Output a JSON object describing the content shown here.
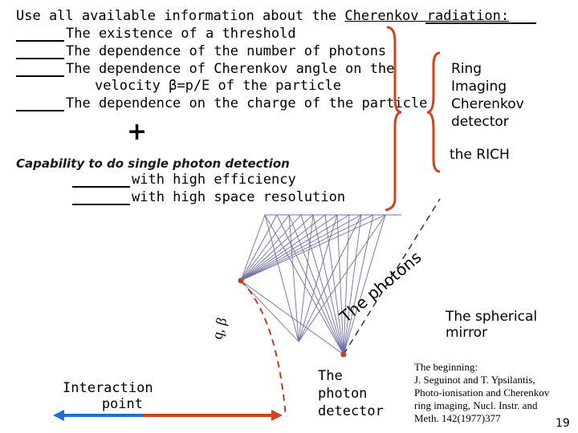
{
  "heading": {
    "prefix": "Use all available information about the ",
    "link": "Cherenkov radiation:"
  },
  "items": [
    "The existence of a threshold",
    "The dependence of the number of photons",
    "The dependence of  Cherenkov angle on the",
    "velocity β=p/E of the particle",
    "The dependence on the charge of the particle"
  ],
  "plus": "+",
  "capability": {
    "title": "Capability to do single photon detection",
    "lines": [
      "with high efficiency",
      "with high space resolution"
    ]
  },
  "rich": {
    "lines": [
      "Ring",
      "Imaging",
      "Cherenkov",
      "detector"
    ],
    "acronym": "the RICH"
  },
  "diagram": {
    "photons_label": "The photons",
    "mirror_label": "The spherical mirror",
    "particle_label": "q, β",
    "interaction_label": "Interaction point",
    "detector_label": "The photon detector"
  },
  "reference": {
    "lines": [
      "The beginning:",
      "J. Seguinot and T. Ypsilantis,",
      "Photo-ionisation and Cherenkov",
      "ring imaging, Nucl. Instr. and",
      "Meth. 142(1977)377"
    ]
  },
  "page_number": "19",
  "colors": {
    "brace": "#d0441c",
    "rays": "#6f6fa8",
    "beam_blue": "#1f6fd6",
    "beam_red": "#d0441c",
    "dashed": "#c83c18"
  }
}
